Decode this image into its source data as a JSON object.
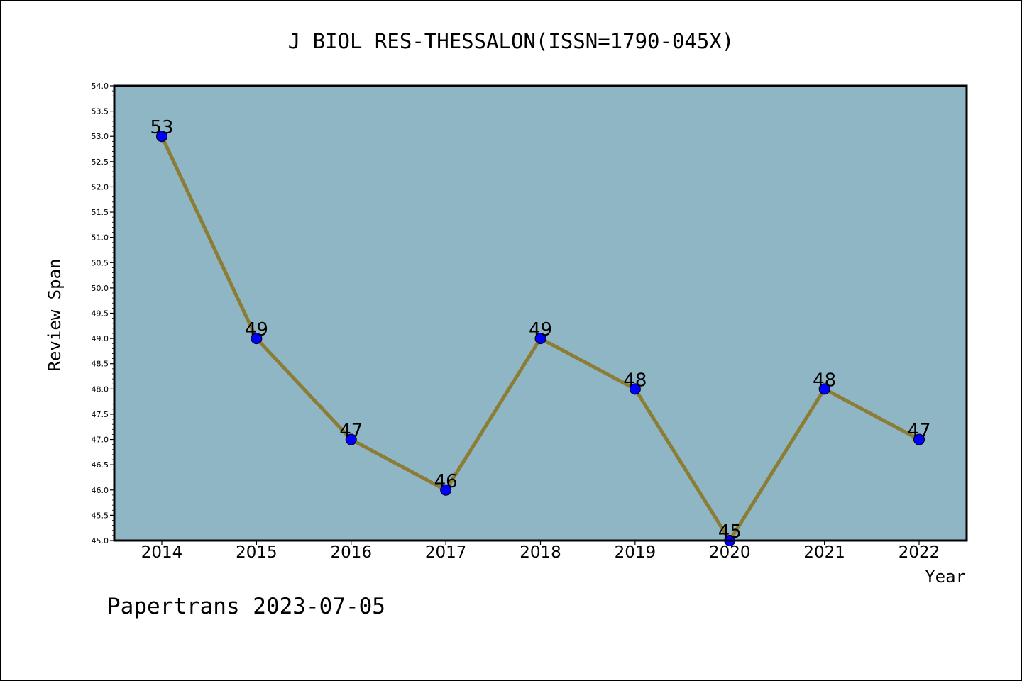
{
  "chart_data": {
    "type": "line",
    "title": "J BIOL RES-THESSALON(ISSN=1790-045X)",
    "xlabel": "Year",
    "ylabel": "Review Span",
    "x": [
      "2014",
      "2015",
      "2016",
      "2017",
      "2018",
      "2019",
      "2020",
      "2021",
      "2022"
    ],
    "series": [
      {
        "values": [
          53,
          49,
          47,
          46,
          49,
          48,
          45,
          48,
          47
        ]
      }
    ],
    "data_labels": [
      "53",
      "49",
      "47",
      "46",
      "49",
      "48",
      "45",
      "48",
      "47"
    ],
    "ylim": [
      45.0,
      54.0
    ],
    "yticks": [
      "45.0",
      "45.5",
      "46.0",
      "46.5",
      "47.0",
      "47.5",
      "48.0",
      "48.5",
      "49.0",
      "49.5",
      "50.0",
      "50.5",
      "51.0",
      "51.5",
      "52.0",
      "52.5",
      "53.0",
      "53.5",
      "54.0"
    ],
    "grid": false,
    "colors": {
      "plot_background": "#8fb6c4",
      "line": "#8b7d35",
      "marker": "#0000ff"
    }
  },
  "footer": {
    "watermark": "Papertrans 2023-07-05"
  }
}
